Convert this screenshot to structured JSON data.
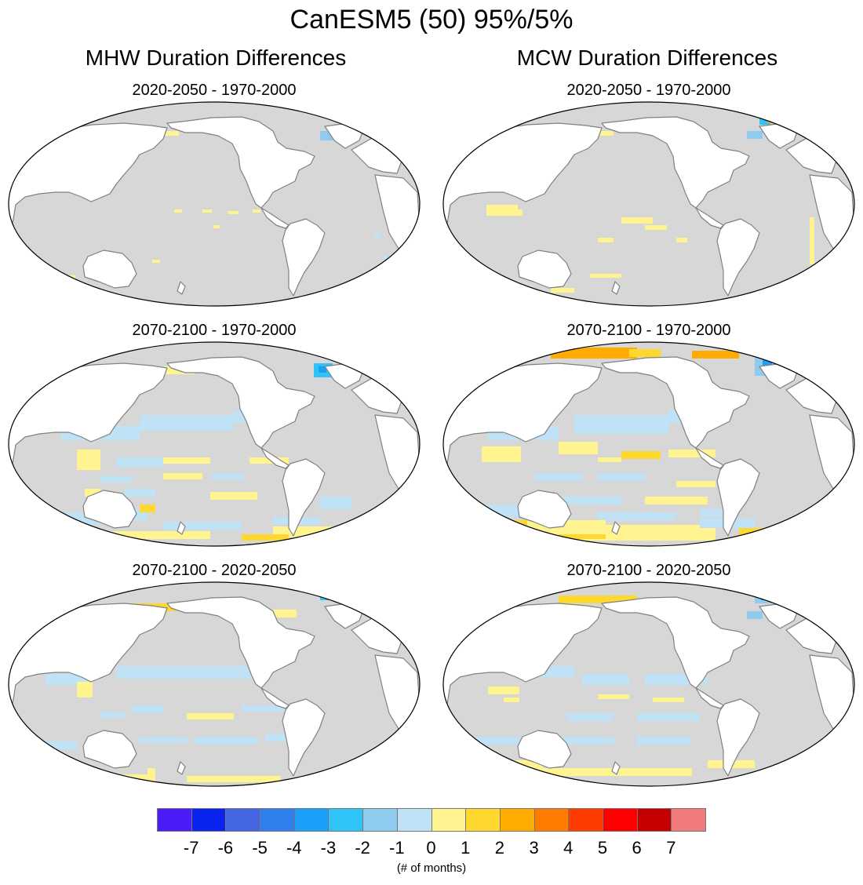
{
  "title": "CanESM5 (50) 95%/5%",
  "columns": [
    {
      "label": "MHW Duration Differences"
    },
    {
      "label": "MCW Duration Differences"
    }
  ],
  "panels": [
    {
      "title": "2020-2050 - 1970-2000",
      "column": "MHW"
    },
    {
      "title": "2020-2050 - 1970-2000",
      "column": "MCW"
    },
    {
      "title": "2070-2100 - 1970-2000",
      "column": "MHW"
    },
    {
      "title": "2070-2100 - 1970-2000",
      "column": "MCW"
    },
    {
      "title": "2070-2100 - 2020-2050",
      "column": "MHW"
    },
    {
      "title": "2070-2100 - 2020-2050",
      "column": "MCW"
    }
  ],
  "colors": {
    "ocean_no_signal": "#d7d7d7",
    "land": "#ffffff",
    "coastline": "#808080"
  },
  "colorbar": {
    "colors": [
      "#4b1cf5",
      "#0a24f0",
      "#4466e4",
      "#2f80ee",
      "#1aa0f8",
      "#2fc3f8",
      "#8fcbef",
      "#bfe2f6",
      "#fff490",
      "#ffd82f",
      "#ffab00",
      "#ff7c00",
      "#ff3c00",
      "#ff0000",
      "#c60000",
      "#f07a7a"
    ],
    "ticks": [
      "-7",
      "-6",
      "-5",
      "-4",
      "-3",
      "-2",
      "-1",
      "0",
      "1",
      "2",
      "3",
      "4",
      "5",
      "6",
      "7"
    ],
    "label": "(# of months)"
  }
}
